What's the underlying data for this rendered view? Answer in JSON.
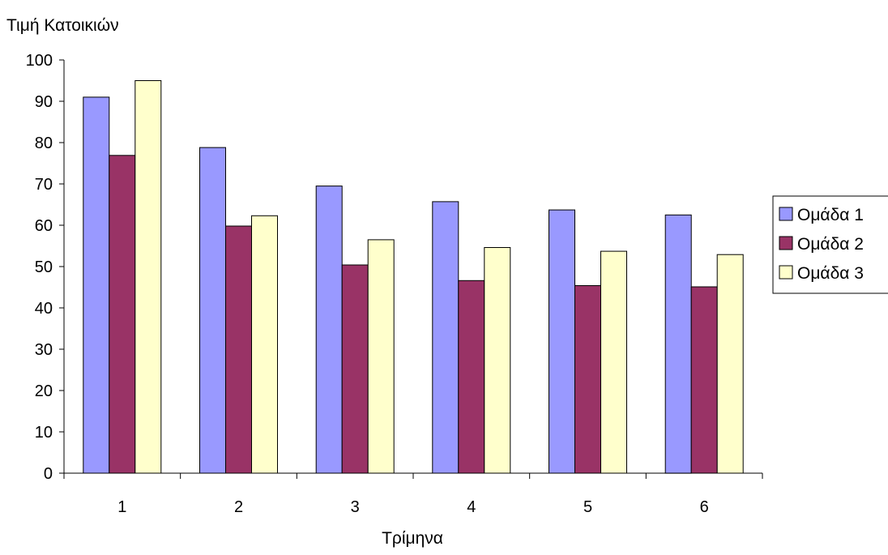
{
  "chart_data": {
    "type": "bar",
    "ylabel": "Τιμή Κατοικιών",
    "xlabel": "Τρίμηνα",
    "categories": [
      "1",
      "2",
      "3",
      "4",
      "5",
      "6"
    ],
    "ylim": [
      0,
      100
    ],
    "yticks": [
      "0",
      "10",
      "20",
      "30",
      "40",
      "50",
      "60",
      "70",
      "80",
      "90",
      "100"
    ],
    "grid": false,
    "legend_position": "right",
    "series": [
      {
        "name": "Ομάδα 1",
        "color": "#9999ff",
        "values": [
          91,
          78.8,
          69.5,
          65.7,
          63.7,
          62.5
        ]
      },
      {
        "name": "Ομάδα 2",
        "color": "#993366",
        "values": [
          76.9,
          59.8,
          50.4,
          46.6,
          45.4,
          45.1
        ]
      },
      {
        "name": "Ομάδα 3",
        "color": "#ffffcc",
        "values": [
          95,
          62.3,
          56.5,
          54.6,
          53.7,
          52.9
        ]
      }
    ]
  }
}
